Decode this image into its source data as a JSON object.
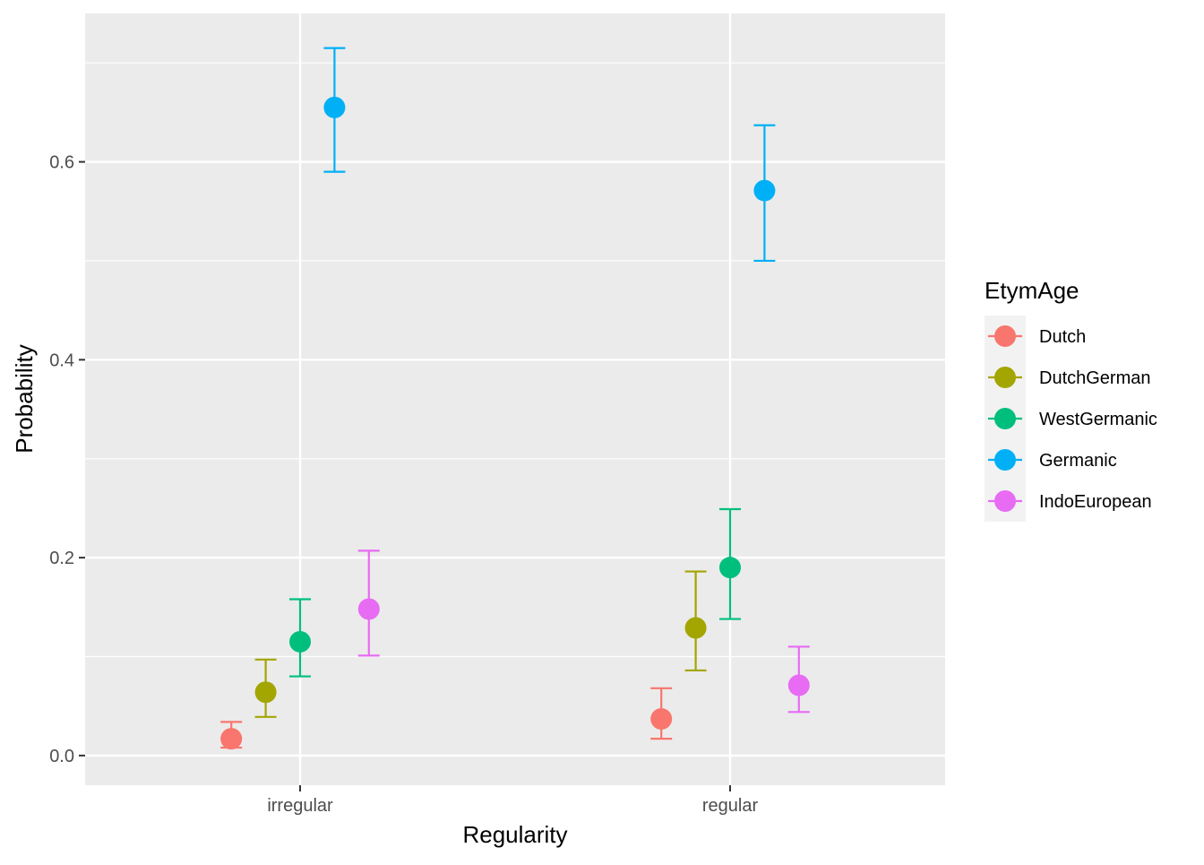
{
  "chart_data": {
    "type": "scatter",
    "title": "",
    "xlabel": "Regularity",
    "ylabel": "Probability",
    "categories": [
      "irregular",
      "regular"
    ],
    "ylim": [
      -0.03,
      0.75
    ],
    "yticks": [
      0.0,
      0.2,
      0.4,
      0.6
    ],
    "ytick_labels": [
      "0.0",
      "0.2",
      "0.4",
      "0.6"
    ],
    "grid": true,
    "legend": {
      "title": "EtymAge",
      "position": "right"
    },
    "series": [
      {
        "name": "Dutch",
        "color": "#F8766D",
        "values": [
          0.017,
          0.037
        ],
        "lower": [
          0.008,
          0.017
        ],
        "upper": [
          0.034,
          0.068
        ]
      },
      {
        "name": "DutchGerman",
        "color": "#A3A500",
        "values": [
          0.064,
          0.129
        ],
        "lower": [
          0.039,
          0.086
        ],
        "upper": [
          0.097,
          0.186
        ]
      },
      {
        "name": "WestGermanic",
        "color": "#00BF7D",
        "values": [
          0.115,
          0.19
        ],
        "lower": [
          0.08,
          0.138
        ],
        "upper": [
          0.158,
          0.249
        ]
      },
      {
        "name": "Germanic",
        "color": "#00B0F6",
        "values": [
          0.655,
          0.571
        ],
        "lower": [
          0.59,
          0.5
        ],
        "upper": [
          0.715,
          0.637
        ]
      },
      {
        "name": "IndoEuropean",
        "color": "#E76BF3",
        "values": [
          0.148,
          0.071
        ],
        "lower": [
          0.101,
          0.044
        ],
        "upper": [
          0.207,
          0.11
        ]
      }
    ]
  }
}
